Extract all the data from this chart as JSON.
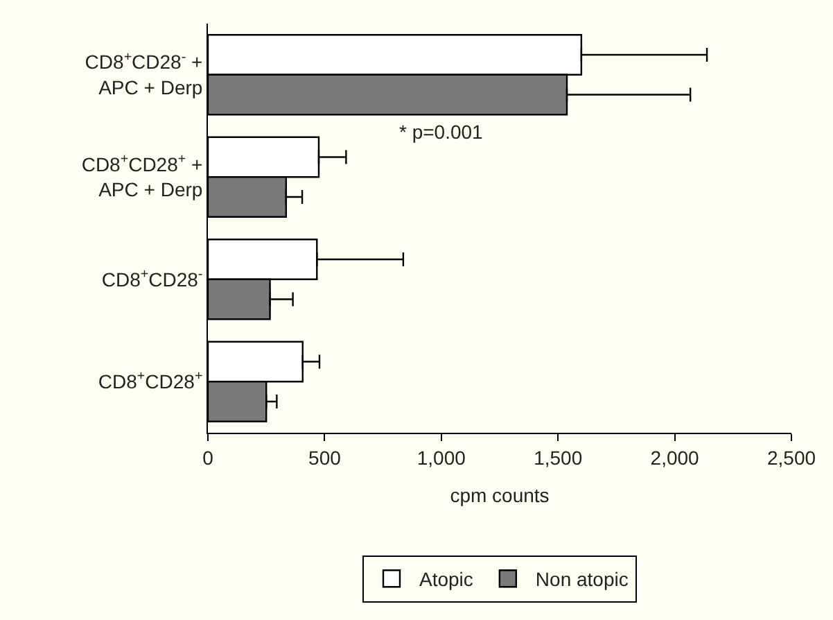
{
  "chart_data": {
    "type": "bar",
    "orientation": "horizontal",
    "categories": [
      "CD8$^{+}$CD28$^{-}$ +\nAPC + Derp",
      "CD8$^{+}$CD28$^{+}$ +\nAPC + Derp",
      "CD8$^{+}$CD28$^{-}$",
      "CD8$^{+}$CD28$^{+}$"
    ],
    "series": [
      {
        "name": "Atopic",
        "color": "#ffffff",
        "values": [
          1600,
          475,
          467,
          406
        ],
        "errors": [
          [
            1600,
            2138
          ],
          [
            475,
            592
          ],
          [
            467,
            837
          ],
          [
            406,
            478
          ]
        ]
      },
      {
        "name": "Non atopic",
        "color": "#7a7a7a",
        "values": [
          1538,
          335,
          266,
          250
        ],
        "errors": [
          [
            1538,
            2067
          ],
          [
            335,
            404
          ],
          [
            266,
            364
          ],
          [
            250,
            295
          ]
        ]
      }
    ],
    "xlabel": "cpm counts",
    "xlim": [
      0,
      2500
    ],
    "xticks": [
      0,
      500,
      {
        "value": 1000,
        "label": "1,000"
      },
      {
        "value": 1500,
        "label": "1,500"
      },
      {
        "value": 2000,
        "label": "2,000"
      },
      {
        "value": 2500,
        "label": "2,500"
      }
    ],
    "annotations": [
      "* p=0.001"
    ],
    "grid": false,
    "legend": "bottom"
  }
}
